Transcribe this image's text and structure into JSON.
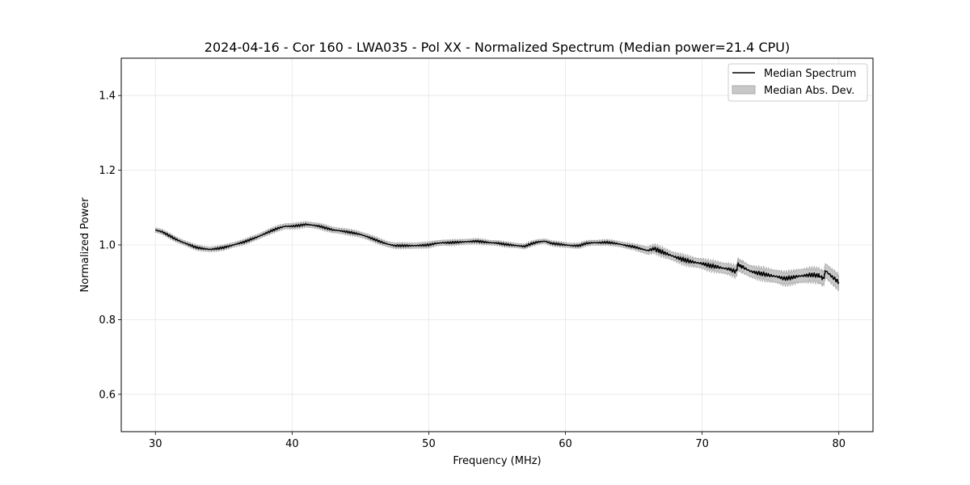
{
  "chart_data": {
    "type": "line",
    "title": "2024-04-16 - Cor 160 - LWA035 - Pol XX - Normalized Spectrum (Median power=21.4 CPU)",
    "xlabel": "Frequency (MHz)",
    "ylabel": "Normalized Power",
    "xlim": [
      27.5,
      82.5
    ],
    "ylim": [
      0.5,
      1.5
    ],
    "xticks": [
      30,
      40,
      50,
      60,
      70,
      80
    ],
    "yticks": [
      0.6,
      0.8,
      1.0,
      1.2,
      1.4
    ],
    "xtick_labels": [
      "30",
      "40",
      "50",
      "60",
      "70",
      "80"
    ],
    "ytick_labels": [
      "0.6",
      "0.8",
      "1.0",
      "1.2",
      "1.4"
    ],
    "grid": true,
    "legend_position": "top-right",
    "series": [
      {
        "name": "Median Spectrum",
        "kind": "line",
        "color": "#000000",
        "x": [
          30,
          30.5,
          31,
          31.5,
          32,
          32.5,
          33,
          33.5,
          34,
          34.5,
          35,
          35.5,
          36,
          36.5,
          37,
          37.5,
          38,
          38.5,
          39,
          39.5,
          40,
          40.5,
          41,
          41.5,
          42,
          42.5,
          43,
          43.5,
          44,
          44.5,
          45,
          45.5,
          46,
          46.5,
          47,
          47.5,
          48,
          48.5,
          49,
          49.5,
          50,
          50.5,
          51,
          51.5,
          52,
          52.5,
          53,
          53.5,
          54,
          54.5,
          55,
          55.5,
          56,
          56.5,
          57,
          57.5,
          58,
          58.5,
          59,
          59.5,
          60,
          60.5,
          61,
          61.5,
          62,
          62.5,
          63,
          63.5,
          64,
          64.5,
          65,
          65.5,
          66,
          66.5,
          67,
          67.5,
          68,
          68.5,
          69,
          69.5,
          70,
          70.5,
          71,
          71.5,
          72,
          72.5,
          72.6,
          73,
          73.5,
          74,
          74.5,
          75,
          75.5,
          76,
          76.5,
          77,
          77.5,
          78,
          78.5,
          78.9,
          79,
          79.5,
          80
        ],
        "y": [
          1.04,
          1.035,
          1.025,
          1.015,
          1.007,
          1.0,
          0.993,
          0.99,
          0.988,
          0.99,
          0.993,
          0.998,
          1.003,
          1.008,
          1.015,
          1.022,
          1.03,
          1.038,
          1.045,
          1.05,
          1.05,
          1.052,
          1.055,
          1.053,
          1.05,
          1.045,
          1.04,
          1.038,
          1.035,
          1.032,
          1.028,
          1.022,
          1.015,
          1.008,
          1.002,
          0.998,
          0.998,
          0.998,
          0.998,
          0.999,
          1.0,
          1.004,
          1.006,
          1.006,
          1.007,
          1.008,
          1.009,
          1.01,
          1.008,
          1.006,
          1.005,
          1.002,
          1.0,
          0.998,
          0.996,
          1.003,
          1.008,
          1.01,
          1.004,
          1.002,
          1.0,
          0.998,
          0.998,
          1.004,
          1.006,
          1.006,
          1.007,
          1.005,
          1.002,
          0.998,
          0.995,
          0.99,
          0.985,
          0.99,
          0.982,
          0.975,
          0.968,
          0.962,
          0.957,
          0.953,
          0.95,
          0.945,
          0.942,
          0.938,
          0.935,
          0.928,
          0.948,
          0.94,
          0.93,
          0.925,
          0.922,
          0.918,
          0.915,
          0.91,
          0.912,
          0.916,
          0.918,
          0.92,
          0.918,
          0.91,
          0.932,
          0.915,
          0.9
        ]
      },
      {
        "name": "Median Abs. Dev.",
        "kind": "band",
        "color": "#c8c8c8",
        "edge_color": "#a0a0a0",
        "x": [
          30,
          35,
          40,
          45,
          50,
          55,
          60,
          65,
          66,
          70,
          72,
          75,
          78,
          80
        ],
        "halfwidth": [
          0.006,
          0.006,
          0.007,
          0.007,
          0.007,
          0.006,
          0.006,
          0.007,
          0.01,
          0.012,
          0.014,
          0.016,
          0.018,
          0.02
        ]
      }
    ]
  }
}
